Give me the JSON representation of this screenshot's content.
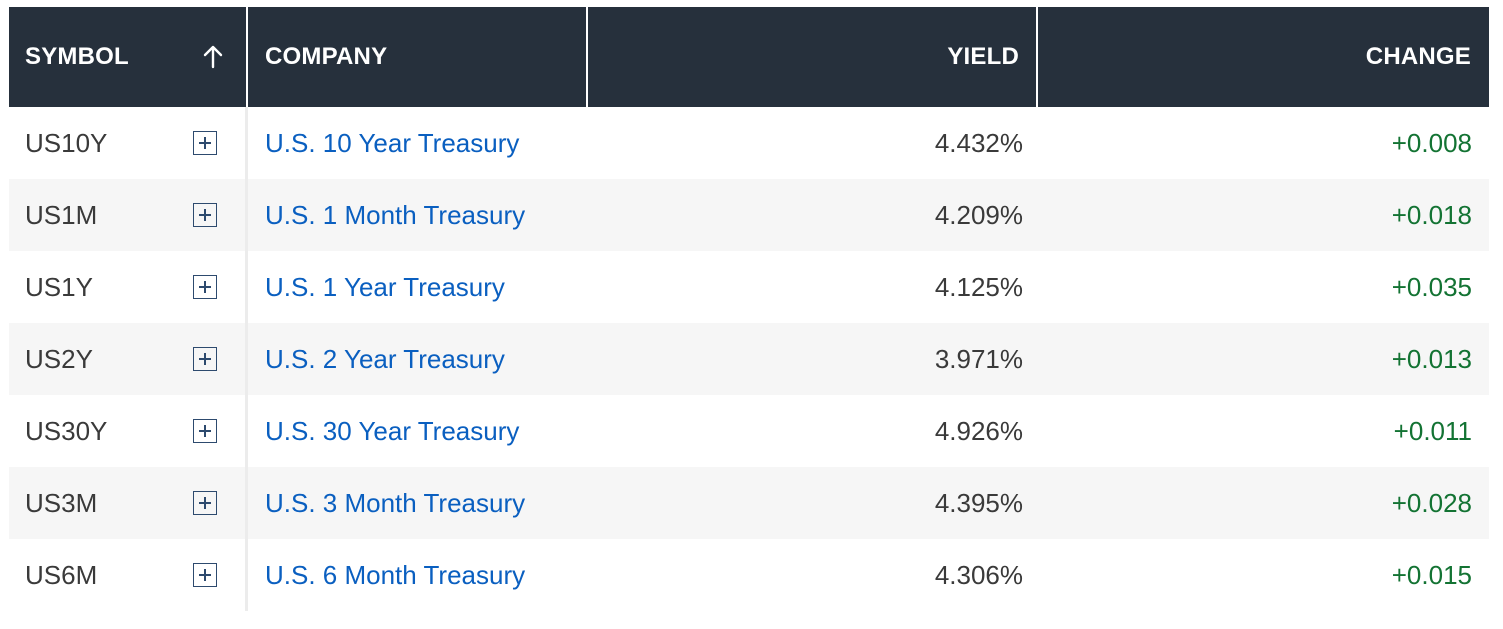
{
  "header": {
    "symbol": "SYMBOL",
    "company": "COMPANY",
    "yield": "YIELD",
    "change": "CHANGE"
  },
  "rows": [
    {
      "symbol": "US10Y",
      "company": "U.S. 10 Year Treasury",
      "yield": "4.432%",
      "change": "+0.008"
    },
    {
      "symbol": "US1M",
      "company": "U.S. 1 Month Treasury",
      "yield": "4.209%",
      "change": "+0.018"
    },
    {
      "symbol": "US1Y",
      "company": "U.S. 1 Year Treasury",
      "yield": "4.125%",
      "change": "+0.035"
    },
    {
      "symbol": "US2Y",
      "company": "U.S. 2 Year Treasury",
      "yield": "3.971%",
      "change": "+0.013"
    },
    {
      "symbol": "US30Y",
      "company": "U.S. 30 Year Treasury",
      "yield": "4.926%",
      "change": "+0.011"
    },
    {
      "symbol": "US3M",
      "company": "U.S. 3 Month Treasury",
      "yield": "4.395%",
      "change": "+0.028"
    },
    {
      "symbol": "US6M",
      "company": "U.S. 6 Month Treasury",
      "yield": "4.306%",
      "change": "+0.015"
    }
  ],
  "colors": {
    "header_bg": "#26303c",
    "link": "#0a5fc0",
    "positive": "#137333",
    "alt_row": "#f6f6f6"
  },
  "icons": {
    "sort": "arrow-up-icon",
    "add": "plus-box-icon"
  }
}
